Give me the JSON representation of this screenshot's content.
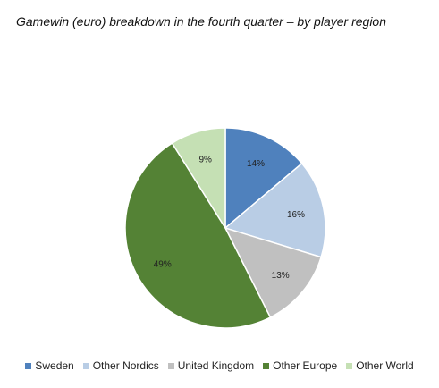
{
  "chart_data": {
    "type": "pie",
    "title": "Gamewin (euro) breakdown in the fourth quarter – by player region",
    "start_angle": "top",
    "direction": "clockwise",
    "legend_position": "bottom",
    "slices": [
      {
        "label": "Sweden",
        "value": 14,
        "display": "14%",
        "color": "#4f81bd"
      },
      {
        "label": "Other Nordics",
        "value": 16,
        "display": "16%",
        "color": "#b9cde5"
      },
      {
        "label": "United Kingdom",
        "value": 13,
        "display": "13%",
        "color": "#c0c0c0"
      },
      {
        "label": "Other Europe",
        "value": 49,
        "display": "49%",
        "color": "#548235"
      },
      {
        "label": "Other World",
        "value": 9,
        "display": "9%",
        "color": "#c5e0b4"
      }
    ]
  }
}
